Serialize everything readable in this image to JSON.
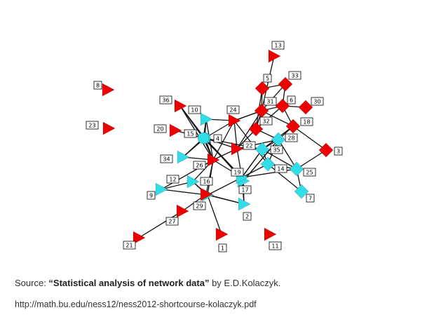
{
  "diagram": {
    "colors": {
      "red": "#ee0000",
      "cyan": "#33dde8",
      "edge": "#111111"
    },
    "nodes": [
      {
        "id": "1",
        "shape": "triangle",
        "color": "red"
      },
      {
        "id": "2",
        "shape": "triangle",
        "color": "cyan"
      },
      {
        "id": "3",
        "shape": "diamond",
        "color": "red"
      },
      {
        "id": "4",
        "shape": "circle",
        "color": "cyan"
      },
      {
        "id": "5",
        "shape": "diamond",
        "color": "red"
      },
      {
        "id": "6",
        "shape": "diamond",
        "color": "red"
      },
      {
        "id": "7",
        "shape": "diamond",
        "color": "cyan"
      },
      {
        "id": "8",
        "shape": "triangle",
        "color": "red"
      },
      {
        "id": "9",
        "shape": "triangle",
        "color": "cyan"
      },
      {
        "id": "10",
        "shape": "triangle",
        "color": "cyan"
      },
      {
        "id": "11",
        "shape": "triangle",
        "color": "red"
      },
      {
        "id": "12",
        "shape": "triangle",
        "color": "cyan"
      },
      {
        "id": "13",
        "shape": "triangle",
        "color": "red"
      },
      {
        "id": "14",
        "shape": "diamond",
        "color": "cyan"
      },
      {
        "id": "15",
        "shape": "circle",
        "color": "cyan"
      },
      {
        "id": "16",
        "shape": "triangle",
        "color": "cyan"
      },
      {
        "id": "17",
        "shape": "triangle",
        "color": "cyan"
      },
      {
        "id": "18",
        "shape": "diamond",
        "color": "red"
      },
      {
        "id": "19",
        "shape": "triangle",
        "color": "cyan"
      },
      {
        "id": "20",
        "shape": "triangle",
        "color": "red"
      },
      {
        "id": "21",
        "shape": "triangle",
        "color": "red"
      },
      {
        "id": "22",
        "shape": "triangle",
        "color": "red"
      },
      {
        "id": "23",
        "shape": "triangle",
        "color": "red"
      },
      {
        "id": "24",
        "shape": "triangle",
        "color": "red"
      },
      {
        "id": "25",
        "shape": "diamond",
        "color": "cyan"
      },
      {
        "id": "26",
        "shape": "triangle",
        "color": "red"
      },
      {
        "id": "27",
        "shape": "triangle",
        "color": "red"
      },
      {
        "id": "28",
        "shape": "diamond",
        "color": "cyan"
      },
      {
        "id": "29",
        "shape": "triangle",
        "color": "red"
      },
      {
        "id": "30",
        "shape": "diamond",
        "color": "red"
      },
      {
        "id": "31",
        "shape": "diamond",
        "color": "red"
      },
      {
        "id": "32",
        "shape": "diamond",
        "color": "red"
      },
      {
        "id": "33",
        "shape": "diamond",
        "color": "red"
      },
      {
        "id": "34",
        "shape": "triangle",
        "color": "cyan"
      },
      {
        "id": "35",
        "shape": "diamond",
        "color": "cyan"
      },
      {
        "id": "36",
        "shape": "triangle",
        "color": "red"
      }
    ],
    "edges": [
      [
        "13",
        "31"
      ],
      [
        "5",
        "33"
      ],
      [
        "5",
        "31"
      ],
      [
        "33",
        "31"
      ],
      [
        "33",
        "6"
      ],
      [
        "31",
        "6"
      ],
      [
        "6",
        "30"
      ],
      [
        "31",
        "18"
      ],
      [
        "6",
        "18"
      ],
      [
        "31",
        "32"
      ],
      [
        "6",
        "32"
      ],
      [
        "32",
        "28"
      ],
      [
        "18",
        "28"
      ],
      [
        "18",
        "35"
      ],
      [
        "32",
        "22"
      ],
      [
        "31",
        "22"
      ],
      [
        "31",
        "24"
      ],
      [
        "24",
        "4"
      ],
      [
        "24",
        "22"
      ],
      [
        "28",
        "35"
      ],
      [
        "35",
        "14"
      ],
      [
        "14",
        "25"
      ],
      [
        "28",
        "25"
      ],
      [
        "25",
        "3"
      ],
      [
        "18",
        "3"
      ],
      [
        "25",
        "7"
      ],
      [
        "14",
        "19"
      ],
      [
        "35",
        "19"
      ],
      [
        "28",
        "17"
      ],
      [
        "22",
        "4"
      ],
      [
        "22",
        "26"
      ],
      [
        "22",
        "19"
      ],
      [
        "4",
        "15"
      ],
      [
        "4",
        "10"
      ],
      [
        "10",
        "24"
      ],
      [
        "36",
        "4"
      ],
      [
        "36",
        "15"
      ],
      [
        "15",
        "20"
      ],
      [
        "15",
        "26"
      ],
      [
        "15",
        "34"
      ],
      [
        "4",
        "26"
      ],
      [
        "4",
        "19"
      ],
      [
        "26",
        "19"
      ],
      [
        "26",
        "12"
      ],
      [
        "26",
        "16"
      ],
      [
        "26",
        "29"
      ],
      [
        "26",
        "34"
      ],
      [
        "12",
        "16"
      ],
      [
        "12",
        "9"
      ],
      [
        "16",
        "9"
      ],
      [
        "16",
        "29"
      ],
      [
        "16",
        "19"
      ],
      [
        "16",
        "2"
      ],
      [
        "19",
        "17"
      ],
      [
        "19",
        "2"
      ],
      [
        "17",
        "2"
      ],
      [
        "29",
        "27"
      ],
      [
        "27",
        "21"
      ],
      [
        "12",
        "29"
      ],
      [
        "4",
        "17"
      ],
      [
        "24",
        "14"
      ],
      [
        "35",
        "4"
      ],
      [
        "10",
        "15"
      ],
      [
        "10",
        "26"
      ],
      [
        "36",
        "26"
      ],
      [
        "17",
        "28"
      ],
      [
        "32",
        "5"
      ],
      [
        "24",
        "31"
      ],
      [
        "35",
        "25"
      ],
      [
        "19",
        "25"
      ],
      [
        "14",
        "7"
      ],
      [
        "22",
        "28"
      ],
      [
        "4",
        "34"
      ],
      [
        "26",
        "4"
      ],
      [
        "15",
        "19"
      ],
      [
        "22",
        "35"
      ],
      [
        "24",
        "26"
      ],
      [
        "9",
        "26"
      ],
      [
        "29",
        "2"
      ],
      [
        "16",
        "1"
      ],
      [
        "28",
        "14"
      ],
      [
        "19",
        "35"
      ]
    ]
  },
  "caption": {
    "source_prefix": "Source: ",
    "title": "“Statistical analysis of network data”",
    "author": " by E.D.Kolaczyk.",
    "url": "http://math.bu.edu/ness12/ness2012-shortcourse-kolaczyk.pdf"
  }
}
